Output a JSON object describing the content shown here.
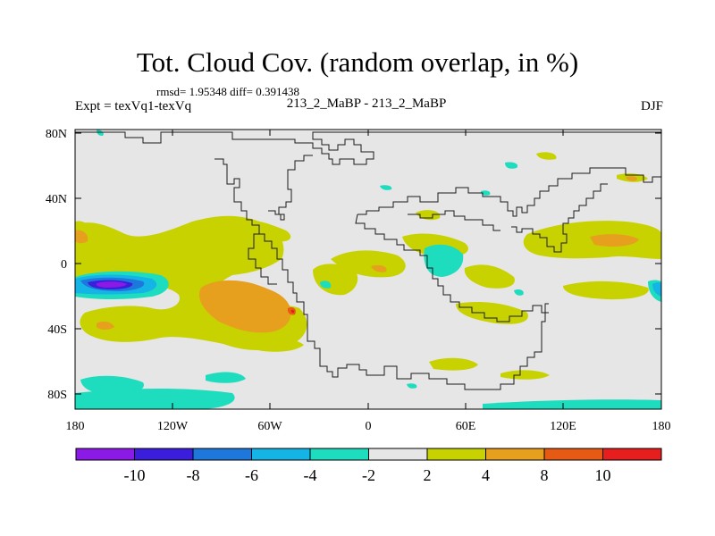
{
  "title": "Tot. Cloud Cov. (random overlap, in %)",
  "stats": "rmsd= 1.95348 diff= 0.391438",
  "experiment": "Expt = texVq1-texVq",
  "case": "213_2_MaBP - 213_2_MaBP",
  "season": "DJF",
  "x_ticks": [
    "180",
    "120W",
    "60W",
    "0",
    "60E",
    "120E",
    "180"
  ],
  "y_ticks": [
    "80N",
    "40N",
    "0",
    "40S",
    "80S"
  ],
  "colorbar": {
    "colors": [
      "#8c1ae6",
      "#3a1edc",
      "#1e78dc",
      "#14b4e6",
      "#1edcbe",
      "#e6e6e6",
      "#c8d200",
      "#e6a01e",
      "#e65a14",
      "#e61e1e"
    ],
    "labels": [
      "-10",
      "-8",
      "-6",
      "-4",
      "-2",
      "2",
      "4",
      "8",
      "10"
    ]
  },
  "colors": {
    "background": "#e6e6e6",
    "yellow": "#c8d200",
    "orange": "#e6a01e",
    "dark_orange": "#e65a14",
    "red": "#e61e1e",
    "cyan": "#1edcbe",
    "sky": "#14b4e6",
    "blue": "#1e78dc",
    "indigo": "#3a1edc",
    "violet": "#8c1ae6"
  }
}
